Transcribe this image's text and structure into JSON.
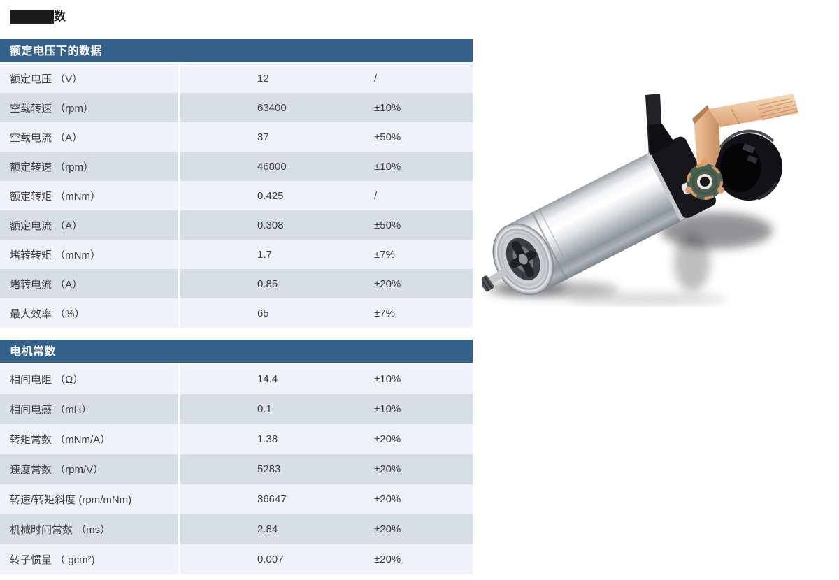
{
  "page": {
    "title_visible_text": "数"
  },
  "colors": {
    "header_bg": "#34618a",
    "header_text": "#ffffff",
    "row_light": "#eff2f8",
    "row_dark": "#d8dee7",
    "body_text": "#3f3f3f",
    "redaction_block": "#1b1b1b"
  },
  "tables": [
    {
      "header": "额定电压下的数据",
      "rows": [
        {
          "label": "额定电压 （V）",
          "value": "12",
          "tolerance": "/"
        },
        {
          "label": "空载转速 （rpm）",
          "value": "63400",
          "tolerance": "±10%"
        },
        {
          "label": "空载电流 （A）",
          "value": "37",
          "tolerance": "±50%"
        },
        {
          "label": "额定转速 （rpm）",
          "value": "46800",
          "tolerance": "±10%"
        },
        {
          "label": "额定转矩 （mNm）",
          "value": "0.425",
          "tolerance": "/"
        },
        {
          "label": "额定电流 （A）",
          "value": "0.308",
          "tolerance": "±50%"
        },
        {
          "label": "堵转转矩 （mNm）",
          "value": "1.7",
          "tolerance": "±7%"
        },
        {
          "label": "堵转电流 （A）",
          "value": "0.85",
          "tolerance": "±20%"
        },
        {
          "label": "最大效率 （%）",
          "value": "65",
          "tolerance": "±7%"
        }
      ]
    },
    {
      "header": "电机常数",
      "rows": [
        {
          "label": "相间电阻 （Ω）",
          "value": "14.4",
          "tolerance": "±10%"
        },
        {
          "label": "相间电感 （mH）",
          "value": "0.1",
          "tolerance": "±10%"
        },
        {
          "label": "转矩常数 （mNm/A）",
          "value": "1.38",
          "tolerance": "±20%"
        },
        {
          "label": "速度常数 （rpm/V）",
          "value": "5283",
          "tolerance": "±20%"
        },
        {
          "label": "转速/转矩斜度 (rpm/mNm)",
          "value": "36647",
          "tolerance": "±20%"
        },
        {
          "label": "机械时间常数 （ms）",
          "value": "2.84",
          "tolerance": "±20%"
        },
        {
          "label": "转子惯量 （ gcm²)",
          "value": "0.007",
          "tolerance": "±20%"
        }
      ]
    }
  ],
  "image": {
    "name": "coreless-motor-exploded-view-photo"
  }
}
